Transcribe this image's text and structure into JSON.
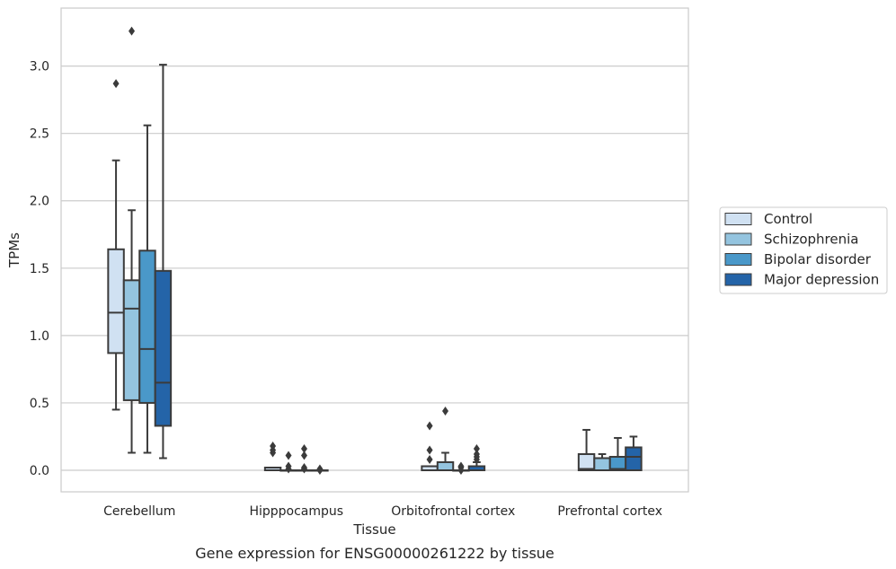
{
  "chart_data": {
    "type": "box",
    "xlabel": "Tissue",
    "ylabel": "TPMs",
    "caption": "Gene expression for ENSG00000261222 by tissue",
    "ylim": [
      -0.16,
      3.45
    ],
    "yticks": [
      "0.0",
      "0.5",
      "1.0",
      "1.5",
      "2.0",
      "2.5",
      "3.0"
    ],
    "grid": "horizontal",
    "legend_position": "right",
    "categories": [
      "Cerebellum",
      "Hipppocampus",
      "Orbitofrontal cortex",
      "Prefrontal cortex"
    ],
    "series": [
      {
        "name": "Control",
        "color": "#d0e1f2",
        "boxes": [
          {
            "whislo": 0.45,
            "q1": 0.87,
            "med": 1.17,
            "q3": 1.64,
            "whishi": 2.3,
            "fliers": [
              2.87
            ]
          },
          {
            "whislo": 0.0,
            "q1": 0.0,
            "med": 0.0,
            "q3": 0.02,
            "whishi": 0.02,
            "fliers": [
              0.13,
              0.15,
              0.18
            ]
          },
          {
            "whislo": 0.0,
            "q1": 0.0,
            "med": 0.0,
            "q3": 0.03,
            "whishi": 0.03,
            "fliers": [
              0.08,
              0.15,
              0.33
            ]
          },
          {
            "whislo": 0.0,
            "q1": 0.0,
            "med": 0.01,
            "q3": 0.12,
            "whishi": 0.3,
            "fliers": []
          }
        ]
      },
      {
        "name": "Schizophrenia",
        "color": "#94c4df",
        "boxes": [
          {
            "whislo": 0.13,
            "q1": 0.52,
            "med": 1.2,
            "q3": 1.41,
            "whishi": 1.93,
            "fliers": [
              3.26
            ]
          },
          {
            "whislo": 0.0,
            "q1": 0.0,
            "med": 0.0,
            "q3": 0.0,
            "whishi": 0.0,
            "fliers": [
              0.01,
              0.03,
              0.11
            ]
          },
          {
            "whislo": 0.0,
            "q1": 0.0,
            "med": 0.0,
            "q3": 0.06,
            "whishi": 0.13,
            "fliers": [
              0.44
            ]
          },
          {
            "whislo": 0.0,
            "q1": 0.0,
            "med": 0.0,
            "q3": 0.09,
            "whishi": 0.12,
            "fliers": []
          }
        ]
      },
      {
        "name": "Bipolar disorder",
        "color": "#4a98c9",
        "boxes": [
          {
            "whislo": 0.13,
            "q1": 0.5,
            "med": 0.9,
            "q3": 1.63,
            "whishi": 2.56,
            "fliers": []
          },
          {
            "whislo": 0.0,
            "q1": 0.0,
            "med": 0.0,
            "q3": 0.0,
            "whishi": 0.0,
            "fliers": [
              0.01,
              0.02,
              0.11,
              0.16
            ]
          },
          {
            "whislo": 0.0,
            "q1": 0.0,
            "med": 0.0,
            "q3": 0.0,
            "whishi": 0.0,
            "fliers": [
              0.0,
              0.02,
              0.03
            ]
          },
          {
            "whislo": 0.0,
            "q1": 0.0,
            "med": 0.01,
            "q3": 0.1,
            "whishi": 0.24,
            "fliers": []
          }
        ]
      },
      {
        "name": "Major depression",
        "color": "#2464a8",
        "boxes": [
          {
            "whislo": 0.09,
            "q1": 0.33,
            "med": 0.65,
            "q3": 1.48,
            "whishi": 3.01,
            "fliers": []
          },
          {
            "whislo": 0.0,
            "q1": 0.0,
            "med": 0.0,
            "q3": 0.0,
            "whishi": 0.0,
            "fliers": [
              0.0,
              0.01
            ]
          },
          {
            "whislo": 0.0,
            "q1": 0.0,
            "med": 0.0,
            "q3": 0.03,
            "whishi": 0.06,
            "fliers": [
              0.08,
              0.1,
              0.12,
              0.16
            ]
          },
          {
            "whislo": 0.0,
            "q1": 0.0,
            "med": 0.1,
            "q3": 0.17,
            "whishi": 0.25,
            "fliers": []
          }
        ]
      }
    ]
  }
}
